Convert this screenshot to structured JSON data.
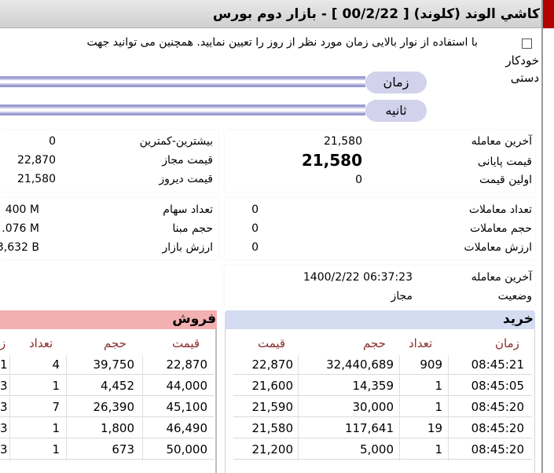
{
  "title": "کاشي الوند (کلوند) [ 00/2/22 ] - بازار دوم بورس",
  "controls": {
    "hint": "با استفاده از نوار بالایی زمان مورد نظر از روز را تعیین نمایید. همچنین می توانید جهت",
    "auto_label": "خودکار",
    "manual_label": "دستی",
    "time_label": "زمان",
    "second_label": "ثانیه"
  },
  "prices": {
    "last_trade_label": "آخرین معامله",
    "last_trade_value": "21,580",
    "closing_label": "قیمت پایانی",
    "closing_value": "21,580",
    "first_label": "اولین قیمت",
    "first_value": "0",
    "range_label": "بیشترین-کمترین",
    "range_value": "0",
    "allowed_label": "قیمت مجاز",
    "allowed_value": "22,870",
    "yesterday_label": "قیمت دیروز",
    "yesterday_value": "21,580"
  },
  "stats": {
    "count_label": "تعداد معاملات",
    "count_value": "0",
    "volume_label": "حجم معاملات",
    "volume_value": "0",
    "value_label": "ارزش معاملات",
    "value_value": "0",
    "shares_label": "تعداد سهام",
    "shares_value": "400 M",
    "base_label": "حجم مبنا",
    "base_value": ".076 M",
    "market_label": "ارزش بازار",
    "market_value": "3,632 B"
  },
  "status": {
    "last_label": "آخرین معامله",
    "last_value": "1400/2/22 06:37:23",
    "state_label": "وضعیت",
    "state_value": "مجاز"
  },
  "buy": {
    "title": "خرید",
    "headers": {
      "time": "زمان",
      "count": "تعداد",
      "volume": "حجم",
      "price": "قیمت"
    },
    "rows": [
      {
        "time": "08:45:21",
        "count": "909",
        "volume": "32,440,689",
        "price": "22,870"
      },
      {
        "time": "08:45:05",
        "count": "1",
        "volume": "14,359",
        "price": "21,600"
      },
      {
        "time": "08:45:20",
        "count": "1",
        "volume": "30,000",
        "price": "21,590"
      },
      {
        "time": "08:45:20",
        "count": "19",
        "volume": "117,641",
        "price": "21,580"
      },
      {
        "time": "08:45:20",
        "count": "1",
        "volume": "5,000",
        "price": "21,200"
      }
    ]
  },
  "sell": {
    "title": "فروش",
    "headers": {
      "price": "قیمت",
      "volume": "حجم",
      "count": "تعداد",
      "time": "ز"
    },
    "rows": [
      {
        "price": "22,870",
        "volume": "39,750",
        "count": "4",
        "time": "1"
      },
      {
        "price": "44,000",
        "volume": "4,452",
        "count": "1",
        "time": "3"
      },
      {
        "price": "45,100",
        "volume": "26,390",
        "count": "7",
        "time": "3"
      },
      {
        "price": "46,490",
        "volume": "1,800",
        "count": "1",
        "time": "3"
      },
      {
        "price": "50,000",
        "volume": "673",
        "count": "1",
        "time": "3"
      }
    ]
  },
  "colors": {
    "buy_header": "#d4dcf2",
    "sell_header": "#f3b0b0",
    "accent_red": "#b30000",
    "column_header": "#8a2b2b"
  }
}
